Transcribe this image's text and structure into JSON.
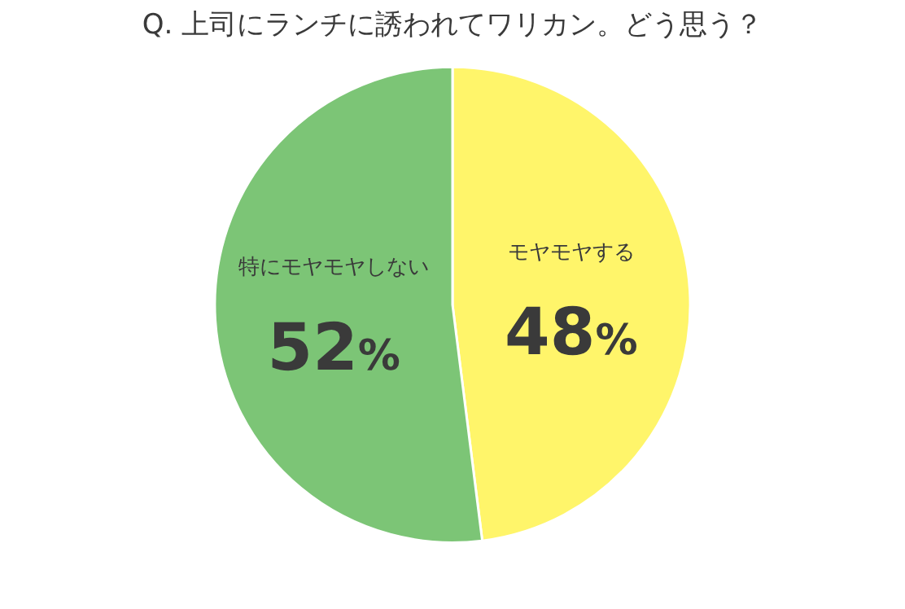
{
  "chart_data": {
    "type": "pie",
    "title": "Q. 上司にランチに誘われてワリカン。どう思う？",
    "categories": [
      "モヤモヤする",
      "特にモヤモヤしない"
    ],
    "values": [
      48,
      52
    ],
    "colors": [
      "#fff56a",
      "#7cc576"
    ],
    "value_labels": [
      "48%",
      "52%"
    ],
    "legend": false
  }
}
